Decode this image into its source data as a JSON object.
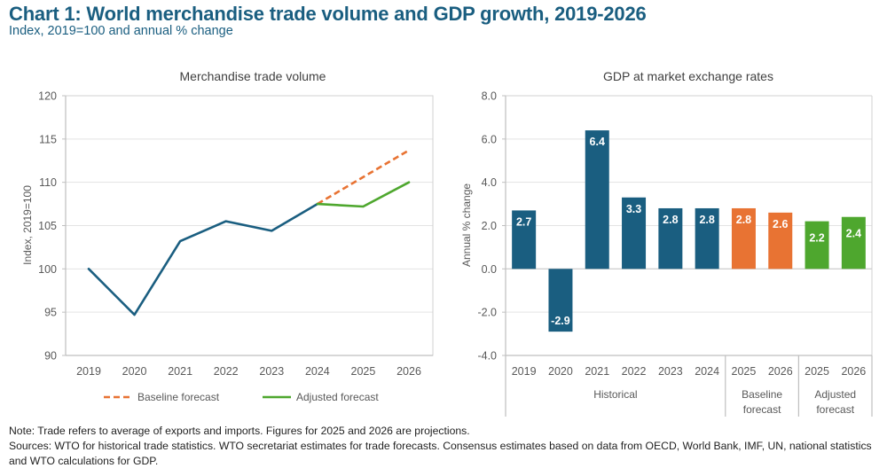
{
  "title": "Chart 1: World merchandise trade volume and GDP growth, 2019-2026",
  "subtitle": "Index, 2019=100 and annual % change",
  "colors": {
    "historical": "#1a5e80",
    "baseline": "#e87333",
    "adjusted": "#4ea72e",
    "title": "#1a5e80"
  },
  "chart_data": [
    {
      "type": "line",
      "title": "Merchandise trade volume",
      "xlabel": "",
      "ylabel": "Index, 2019=100",
      "x": [
        "2019",
        "2020",
        "2021",
        "2022",
        "2023",
        "2024",
        "2025",
        "2026"
      ],
      "ylim": [
        90,
        120
      ],
      "yticks": [
        90,
        95,
        100,
        105,
        110,
        115,
        120
      ],
      "grid": true,
      "legend_position": "bottom",
      "series": [
        {
          "name": "Historical",
          "style": "solid",
          "color": "#1a5e80",
          "x": [
            "2019",
            "2020",
            "2021",
            "2022",
            "2023",
            "2024"
          ],
          "values": [
            100.0,
            94.7,
            103.2,
            105.5,
            104.4,
            107.5
          ],
          "in_legend": false
        },
        {
          "name": "Baseline forecast",
          "style": "dashed",
          "color": "#e87333",
          "x": [
            "2024",
            "2025",
            "2026"
          ],
          "values": [
            107.5,
            110.6,
            113.7
          ],
          "in_legend": true
        },
        {
          "name": "Adjusted forecast",
          "style": "solid",
          "color": "#4ea72e",
          "x": [
            "2024",
            "2025",
            "2026"
          ],
          "values": [
            107.5,
            107.2,
            110.0
          ],
          "in_legend": true
        }
      ]
    },
    {
      "type": "bar",
      "title": "GDP at market exchange rates",
      "xlabel": "",
      "ylabel": "Annual % change",
      "ylim": [
        -4.0,
        8.0
      ],
      "yticks": [
        "-4.0",
        "-2.0",
        "0.0",
        "2.0",
        "4.0",
        "6.0",
        "8.0"
      ],
      "grid": true,
      "categories": [
        "2019",
        "2020",
        "2021",
        "2022",
        "2023",
        "2024",
        "2025",
        "2026",
        "2025",
        "2026"
      ],
      "values": [
        2.7,
        -2.9,
        6.4,
        3.3,
        2.8,
        2.8,
        2.8,
        2.6,
        2.2,
        2.4
      ],
      "labels": [
        "2.7",
        "-2.9",
        "6.4",
        "3.3",
        "2.8",
        "2.8",
        "2.8",
        "2.6",
        "2.2",
        "2.4"
      ],
      "bar_groups": [
        "historical",
        "historical",
        "historical",
        "historical",
        "historical",
        "historical",
        "baseline",
        "baseline",
        "adjusted",
        "adjusted"
      ],
      "groups": [
        {
          "key": "historical",
          "label": [
            "Historical"
          ],
          "count": 6
        },
        {
          "key": "baseline",
          "label": [
            "Baseline",
            "forecast"
          ],
          "count": 2
        },
        {
          "key": "adjusted",
          "label": [
            "Adjusted",
            "forecast"
          ],
          "count": 2
        }
      ]
    }
  ],
  "footnotes": {
    "note": "Note: Trade refers to average of exports and imports. Figures for 2025 and 2026 are projections.",
    "sources": "Sources: WTO for historical trade statistics. WTO secretariat estimates for trade forecasts.  Consensus estimates based on data from OECD, World Bank, IMF, UN, national statistics and WTO calculations for GDP."
  }
}
